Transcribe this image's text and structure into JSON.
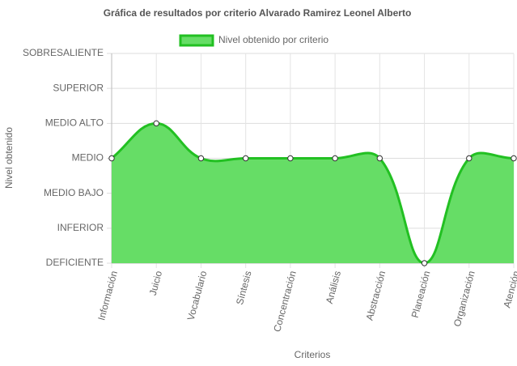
{
  "chart_data": {
    "type": "area",
    "title": "Gráfica de resultados por criterio Alvarado Ramirez Leonel Alberto",
    "x_label": "Criterios",
    "y_label": "Nivel obtenido",
    "categories": [
      "Información",
      "Juicio",
      "Vocabulario",
      "Síntesis",
      "Concentración",
      "Análisis",
      "Abstracción",
      "Planeación",
      "Organización",
      "Atención"
    ],
    "series": [
      {
        "name": "Nivel obtenido por criterio",
        "color": "#22c022",
        "fill": "#66dd66",
        "values": [
          3,
          4,
          3,
          3,
          3,
          3,
          3,
          0,
          3,
          3
        ]
      }
    ],
    "ylim": [
      0,
      6
    ],
    "yticks": [
      {
        "value": 0,
        "label": "DEFICIENTE"
      },
      {
        "value": 1,
        "label": "INFERIOR"
      },
      {
        "value": 2,
        "label": "MEDIO BAJO"
      },
      {
        "value": 3,
        "label": "MEDIO"
      },
      {
        "value": 4,
        "label": "MEDIO ALTO"
      },
      {
        "value": 5,
        "label": "SUPERIOR"
      },
      {
        "value": 6,
        "label": "SOBRESALIENTE"
      }
    ],
    "grid": true,
    "legend": "top"
  }
}
